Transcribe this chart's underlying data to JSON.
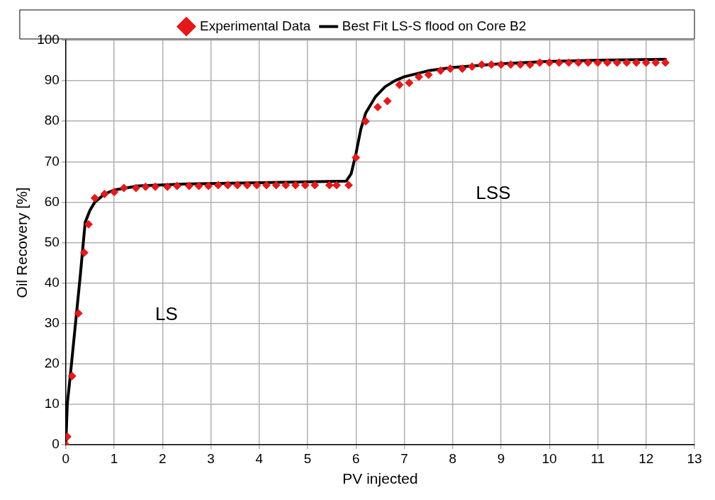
{
  "chart_data": {
    "type": "scatter",
    "xlabel": "PV injected",
    "ylabel": "Oil Recovery [%]",
    "xlim": [
      0,
      13
    ],
    "ylim": [
      0,
      100
    ],
    "xticks": [
      0,
      1,
      2,
      3,
      4,
      5,
      6,
      7,
      8,
      9,
      10,
      11,
      12,
      13
    ],
    "yticks": [
      0,
      10,
      20,
      30,
      40,
      50,
      60,
      70,
      80,
      90,
      100
    ],
    "grid": true,
    "legend": "top",
    "marker": "diamond",
    "annotations": [
      "LS",
      "LSS"
    ],
    "series": [
      {
        "name": "Experimental Data",
        "color": "#e31a1c",
        "x": [
          0,
          0.03,
          0.13,
          0.26,
          0.38,
          0.47,
          0.6,
          0.8,
          1.0,
          1.2,
          1.45,
          1.65,
          1.85,
          2.1,
          2.3,
          2.55,
          2.75,
          2.95,
          3.15,
          3.35,
          3.55,
          3.75,
          3.95,
          4.15,
          4.35,
          4.55,
          4.75,
          4.95,
          5.15,
          5.45,
          5.6,
          5.85,
          6.0,
          6.2,
          6.45,
          6.65,
          6.9,
          7.1,
          7.3,
          7.5,
          7.75,
          7.95,
          8.2,
          8.4,
          8.6,
          8.8,
          9.0,
          9.2,
          9.4,
          9.6,
          9.8,
          10.0,
          10.2,
          10.4,
          10.6,
          10.8,
          11.0,
          11.2,
          11.4,
          11.6,
          11.8,
          12.0,
          12.2,
          12.4
        ],
        "values": [
          0,
          2,
          17,
          32.5,
          47.5,
          54.5,
          61,
          62,
          62.5,
          63.5,
          63.5,
          63.8,
          63.8,
          63.8,
          64,
          64,
          64,
          64,
          64.2,
          64.2,
          64.2,
          64.2,
          64.2,
          64.2,
          64.2,
          64.2,
          64.2,
          64.2,
          64.2,
          64.2,
          64.2,
          64.2,
          71,
          80,
          83.5,
          85,
          89,
          89.5,
          91,
          91.5,
          92.5,
          93,
          93,
          93.5,
          94,
          94,
          94,
          94,
          94,
          94,
          94.5,
          94.5,
          94.5,
          94.5,
          94.5,
          94.5,
          94.5,
          94.5,
          94.5,
          94.5,
          94.5,
          94.5,
          94.5,
          94.5
        ]
      },
      {
        "name": "Best Fit LS-S flood on Core B2",
        "type": "line",
        "color": "#000000",
        "marker": "none",
        "x": [
          0,
          0.03,
          0.1,
          0.2,
          0.3,
          0.4,
          0.5,
          0.6,
          0.8,
          1.0,
          1.5,
          2.5,
          4,
          5.8,
          5.9,
          6.0,
          6.1,
          6.2,
          6.4,
          6.6,
          6.8,
          7.0,
          7.5,
          8,
          9,
          10,
          11,
          12.4
        ],
        "values": [
          0,
          10,
          18,
          30,
          42,
          55,
          58,
          60,
          62,
          63,
          64,
          64.5,
          64.8,
          65.2,
          67,
          72,
          78,
          82,
          86,
          88.5,
          90,
          91,
          92.5,
          93.3,
          94.2,
          94.8,
          95.1,
          95.3
        ]
      }
    ]
  }
}
